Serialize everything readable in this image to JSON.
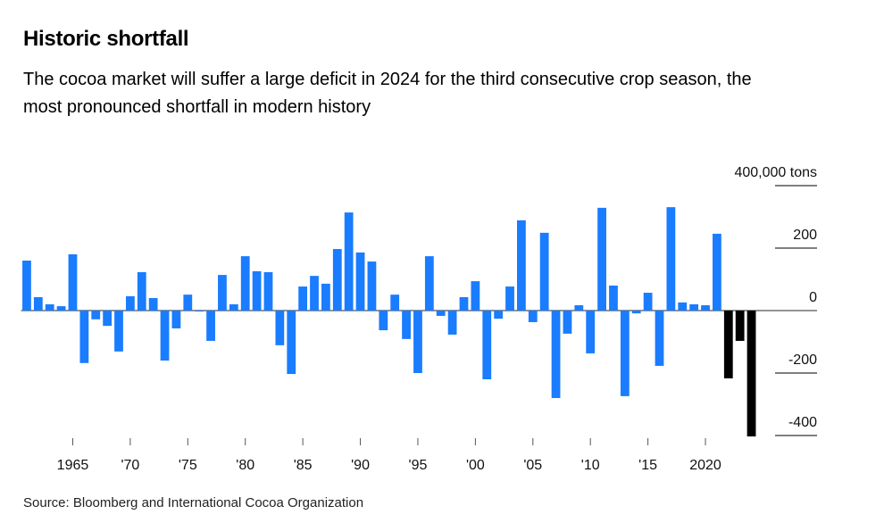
{
  "chart_data": {
    "type": "bar",
    "title": "Historic shortfall",
    "subtitle": "The cocoa market will suffer a large deficit in 2024 for the third consecutive crop season, the most pronounced shortfall in modern history",
    "source": "Source: Bloomberg and International Cocoa Organization",
    "x": [
      1961,
      1962,
      1963,
      1964,
      1965,
      1966,
      1967,
      1968,
      1969,
      1970,
      1971,
      1972,
      1973,
      1974,
      1975,
      1976,
      1977,
      1978,
      1979,
      1980,
      1981,
      1982,
      1983,
      1984,
      1985,
      1986,
      1987,
      1988,
      1989,
      1990,
      1991,
      1992,
      1993,
      1994,
      1995,
      1996,
      1997,
      1998,
      1999,
      2000,
      2001,
      2002,
      2003,
      2004,
      2005,
      2006,
      2007,
      2008,
      2009,
      2010,
      2011,
      2012,
      2013,
      2014,
      2015,
      2016,
      2017,
      2018,
      2019,
      2020,
      2021,
      2022,
      2023,
      2024
    ],
    "values": [
      160000,
      43000,
      20000,
      14000,
      180000,
      -168000,
      -28000,
      -49000,
      -131000,
      46000,
      123000,
      40000,
      -160000,
      -57000,
      51000,
      -3000,
      -97000,
      114000,
      20000,
      174000,
      126000,
      123000,
      -111000,
      -203000,
      77000,
      111000,
      86000,
      197000,
      314000,
      186000,
      157000,
      -63000,
      51000,
      -91000,
      -200000,
      174000,
      -17000,
      -77000,
      43000,
      94000,
      -220000,
      -26000,
      77000,
      289000,
      -37000,
      249000,
      -280000,
      -74000,
      17000,
      -137000,
      329000,
      80000,
      -274000,
      -9000,
      57000,
      -177000,
      331000,
      26000,
      20000,
      17000,
      246000,
      -217000,
      -97000,
      -403000
    ],
    "colors": [
      "#1a7cff",
      "#1a7cff",
      "#1a7cff",
      "#1a7cff",
      "#1a7cff",
      "#1a7cff",
      "#1a7cff",
      "#1a7cff",
      "#1a7cff",
      "#1a7cff",
      "#1a7cff",
      "#1a7cff",
      "#1a7cff",
      "#1a7cff",
      "#1a7cff",
      "#1a7cff",
      "#1a7cff",
      "#1a7cff",
      "#1a7cff",
      "#1a7cff",
      "#1a7cff",
      "#1a7cff",
      "#1a7cff",
      "#1a7cff",
      "#1a7cff",
      "#1a7cff",
      "#1a7cff",
      "#1a7cff",
      "#1a7cff",
      "#1a7cff",
      "#1a7cff",
      "#1a7cff",
      "#1a7cff",
      "#1a7cff",
      "#1a7cff",
      "#1a7cff",
      "#1a7cff",
      "#1a7cff",
      "#1a7cff",
      "#1a7cff",
      "#1a7cff",
      "#1a7cff",
      "#1a7cff",
      "#1a7cff",
      "#1a7cff",
      "#1a7cff",
      "#1a7cff",
      "#1a7cff",
      "#1a7cff",
      "#1a7cff",
      "#1a7cff",
      "#1a7cff",
      "#1a7cff",
      "#1a7cff",
      "#1a7cff",
      "#1a7cff",
      "#1a7cff",
      "#1a7cff",
      "#1a7cff",
      "#1a7cff",
      "#1a7cff",
      "#000000",
      "#000000",
      "#000000"
    ],
    "xlim": [
      1960.5,
      2024.5
    ],
    "xticks": [
      {
        "value": 1965,
        "label": "1965"
      },
      {
        "value": 1970,
        "label": "'70"
      },
      {
        "value": 1975,
        "label": "'75"
      },
      {
        "value": 1980,
        "label": "'80"
      },
      {
        "value": 1985,
        "label": "'85"
      },
      {
        "value": 1990,
        "label": "'90"
      },
      {
        "value": 1995,
        "label": "'95"
      },
      {
        "value": 2000,
        "label": "'00"
      },
      {
        "value": 2005,
        "label": "'05"
      },
      {
        "value": 2010,
        "label": "'10"
      },
      {
        "value": 2015,
        "label": "'15"
      },
      {
        "value": 2020,
        "label": "2020"
      }
    ],
    "ylim": [
      -400000,
      400000
    ],
    "yticks": [
      {
        "value": -400000,
        "label": "-400"
      },
      {
        "value": -200000,
        "label": "-200"
      },
      {
        "value": 0,
        "label": "0"
      },
      {
        "value": 200000,
        "label": "200"
      },
      {
        "value": 400000,
        "label": "400,000 tons"
      }
    ]
  }
}
